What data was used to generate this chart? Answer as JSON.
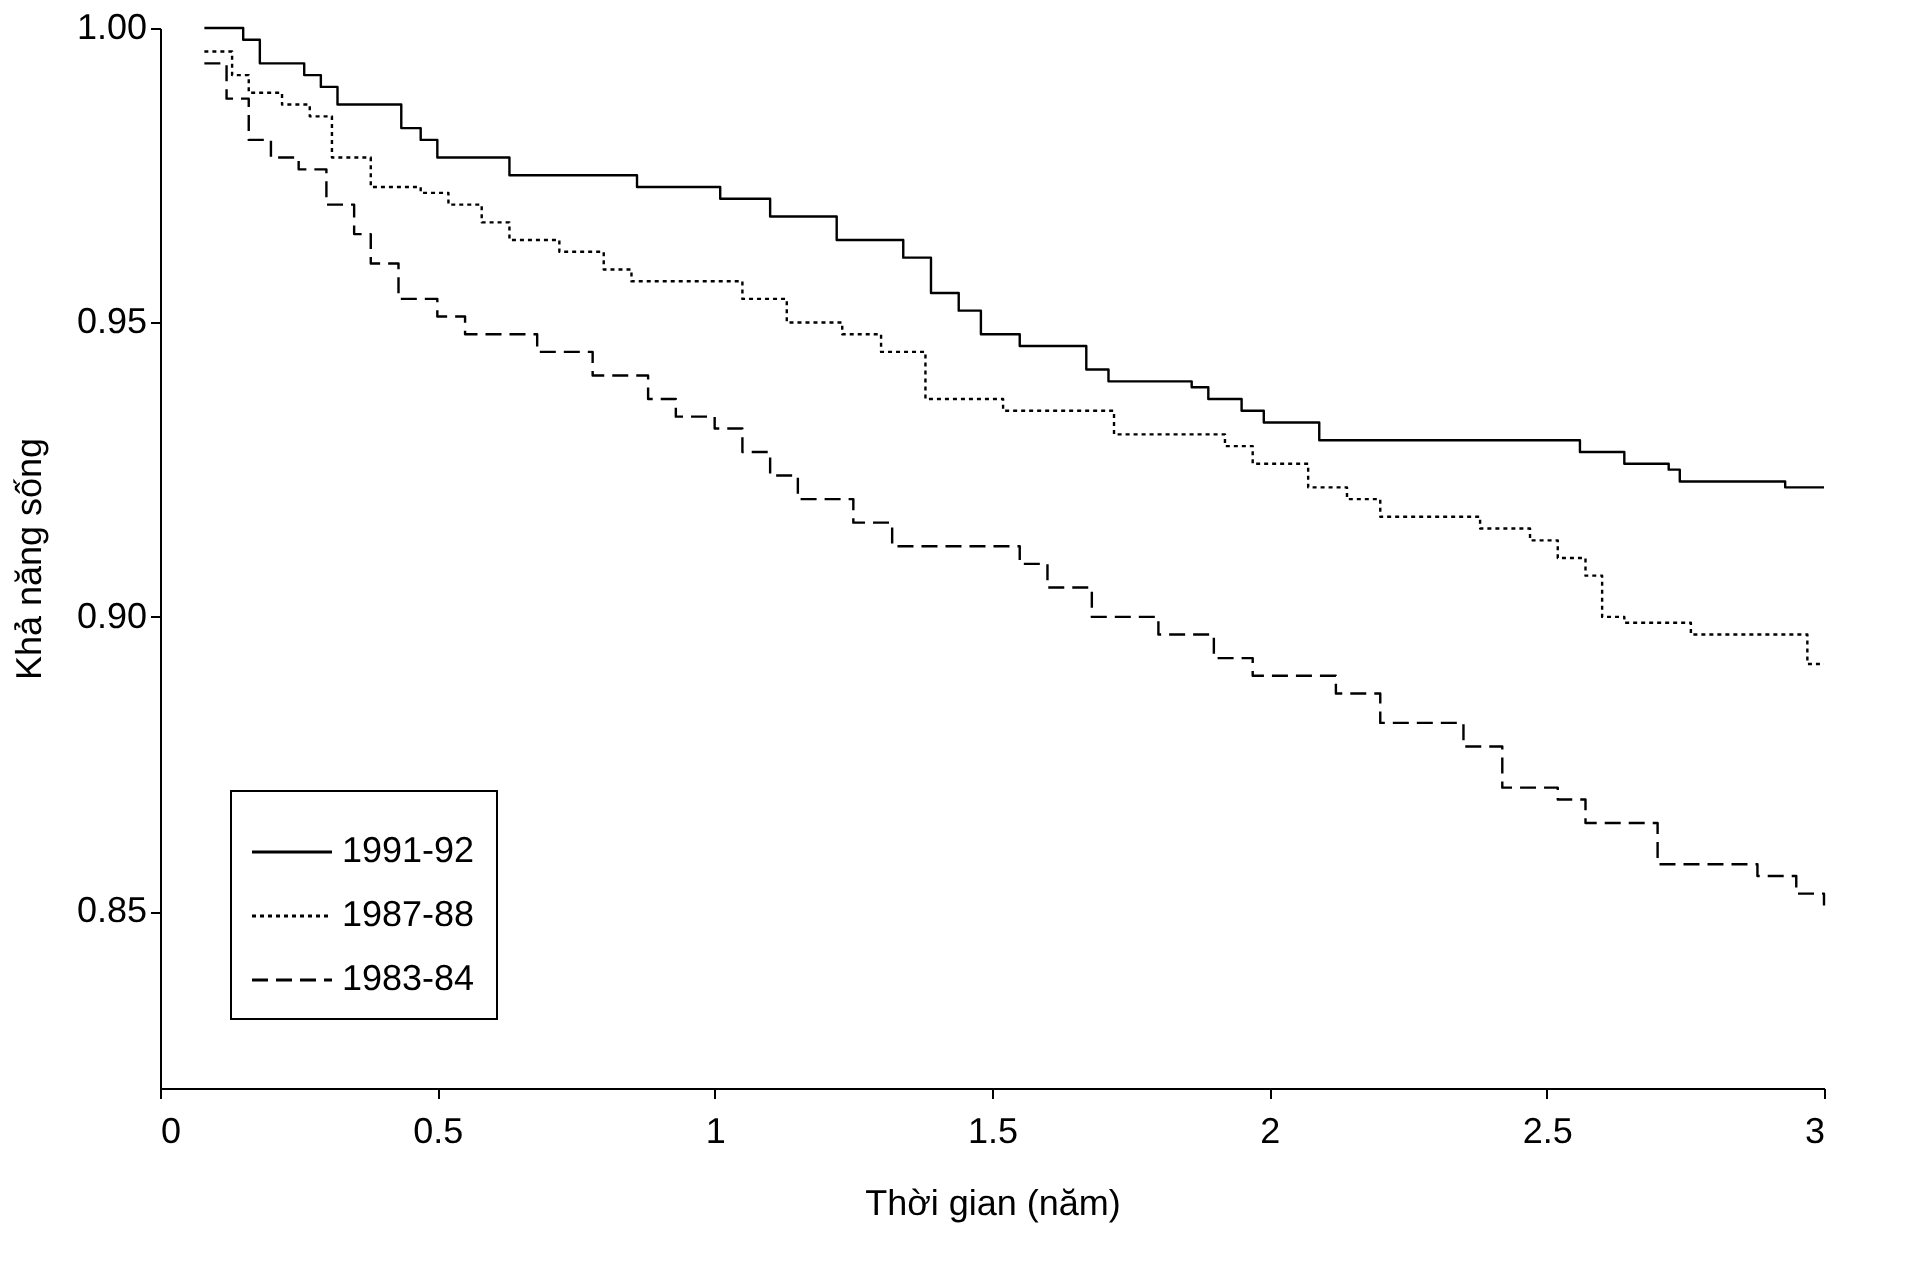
{
  "chart_data": {
    "type": "step",
    "xlabel": "Thời gian (năm)",
    "ylabel": "Khả năng sống",
    "xlim": [
      0,
      3
    ],
    "ylim": [
      0.82,
      1.0
    ],
    "xticks": [
      0,
      0.5,
      1,
      1.5,
      2,
      2.5,
      3
    ],
    "yticks": [
      0.85,
      {
        "value": 0.9,
        "label": "0.90"
      },
      0.95,
      {
        "value": 1,
        "label": "1.00"
      }
    ],
    "grid": false,
    "legend": "bottom left",
    "marker": "none",
    "series": [
      {
        "name": "1991-92",
        "color": "#000000",
        "line_style": "solid",
        "x": [
          0.08,
          0.15,
          0.18,
          0.26,
          0.29,
          0.32,
          0.435,
          0.47,
          0.5,
          0.63,
          0.86,
          1.01,
          1.1,
          1.22,
          1.34,
          1.39,
          1.44,
          1.48,
          1.55,
          1.67,
          1.71,
          1.86,
          1.89,
          1.95,
          1.99,
          2.09,
          2.56,
          2.64,
          2.72,
          2.74,
          2.93,
          3.0
        ],
        "values": [
          1.0,
          0.998,
          0.994,
          0.992,
          0.99,
          0.987,
          0.983,
          0.981,
          0.978,
          0.975,
          0.973,
          0.971,
          0.968,
          0.964,
          0.961,
          0.955,
          0.952,
          0.948,
          0.946,
          0.942,
          0.94,
          0.939,
          0.937,
          0.935,
          0.933,
          0.93,
          0.928,
          0.926,
          0.925,
          0.923,
          0.922,
          0.922
        ]
      },
      {
        "name": "1987-88",
        "color": "#000000",
        "line_style": "dotted",
        "x": [
          0.08,
          0.13,
          0.16,
          0.22,
          0.27,
          0.31,
          0.38,
          0.47,
          0.52,
          0.58,
          0.63,
          0.72,
          0.8,
          0.85,
          1.05,
          1.13,
          1.23,
          1.3,
          1.38,
          1.52,
          1.72,
          1.92,
          1.97,
          2.07,
          2.14,
          2.2,
          2.38,
          2.47,
          2.52,
          2.57,
          2.6,
          2.64,
          2.76,
          2.97,
          3.0
        ],
        "values": [
          0.996,
          0.992,
          0.989,
          0.987,
          0.985,
          0.978,
          0.973,
          0.972,
          0.97,
          0.967,
          0.964,
          0.962,
          0.959,
          0.957,
          0.954,
          0.95,
          0.948,
          0.945,
          0.937,
          0.935,
          0.931,
          0.929,
          0.926,
          0.922,
          0.92,
          0.917,
          0.915,
          0.913,
          0.91,
          0.907,
          0.9,
          0.899,
          0.897,
          0.892,
          0.892
        ]
      },
      {
        "name": "1983-84",
        "color": "#000000",
        "line_style": "dashed",
        "x": [
          0.08,
          0.12,
          0.16,
          0.2,
          0.25,
          0.3,
          0.35,
          0.38,
          0.43,
          0.5,
          0.55,
          0.68,
          0.78,
          0.88,
          0.93,
          1.0,
          1.05,
          1.1,
          1.15,
          1.25,
          1.32,
          1.55,
          1.6,
          1.68,
          1.8,
          1.9,
          1.97,
          2.12,
          2.2,
          2.35,
          2.42,
          2.52,
          2.57,
          2.7,
          2.88,
          2.95,
          3.0
        ],
        "values": [
          0.994,
          0.988,
          0.981,
          0.978,
          0.976,
          0.97,
          0.965,
          0.96,
          0.954,
          0.951,
          0.948,
          0.945,
          0.941,
          0.937,
          0.934,
          0.932,
          0.928,
          0.924,
          0.92,
          0.916,
          0.912,
          0.909,
          0.905,
          0.9,
          0.897,
          0.893,
          0.89,
          0.887,
          0.882,
          0.878,
          0.871,
          0.869,
          0.865,
          0.858,
          0.856,
          0.853,
          0.851
        ]
      }
    ]
  }
}
